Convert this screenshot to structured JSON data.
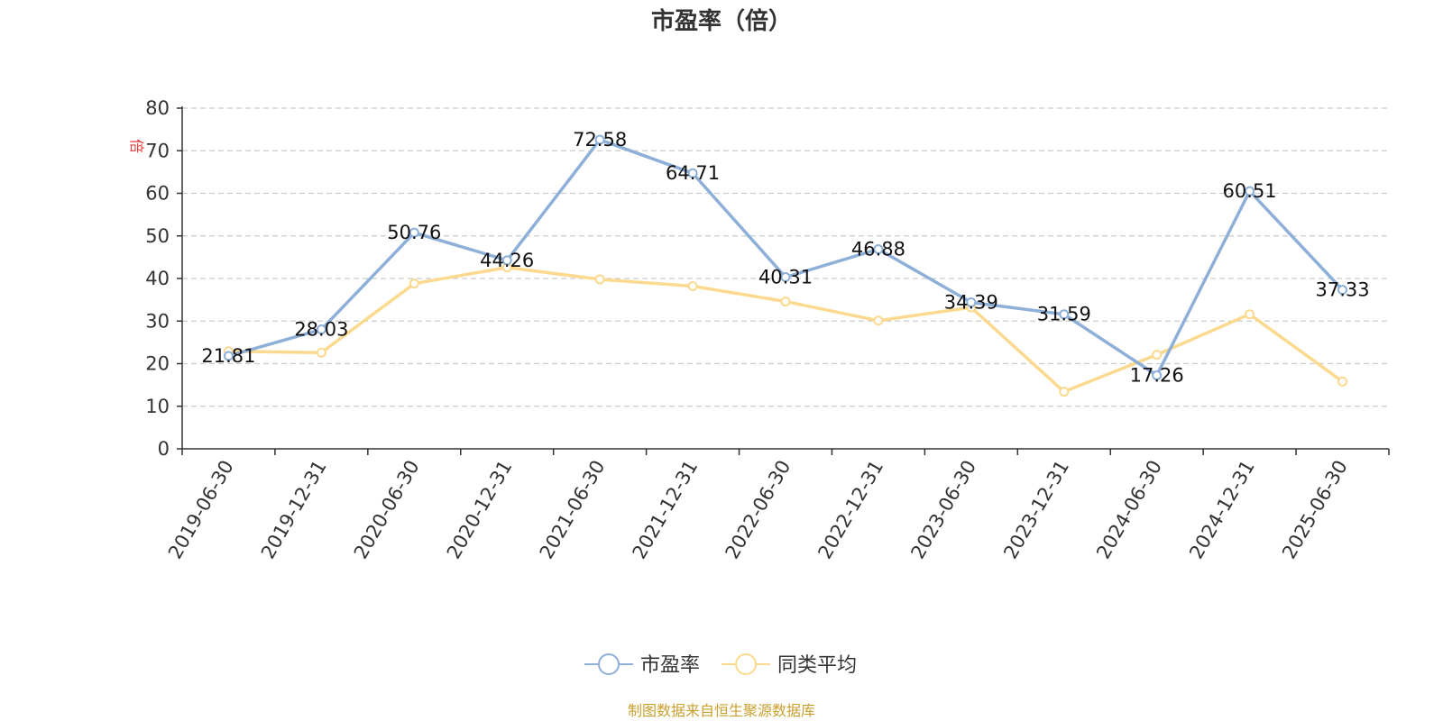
{
  "chart_data": {
    "type": "line",
    "title": "市盈率（倍）",
    "ylabel": "倍",
    "ylim": [
      0,
      80
    ],
    "yticks": [
      0,
      10,
      20,
      30,
      40,
      50,
      60,
      70,
      80
    ],
    "grid": true,
    "legend_position": "bottom",
    "categories": [
      "2019-06-30",
      "2019-12-31",
      "2020-06-30",
      "2020-12-31",
      "2021-06-30",
      "2021-12-31",
      "2022-06-30",
      "2022-12-31",
      "2023-06-30",
      "2023-12-31",
      "2024-06-30",
      "2024-12-31",
      "2025-06-30"
    ],
    "series": [
      {
        "name": "市盈率",
        "color": "#8eafd8",
        "show_labels": true,
        "values": [
          21.81,
          28.03,
          50.76,
          44.26,
          72.58,
          64.71,
          40.31,
          46.88,
          34.39,
          31.59,
          17.26,
          60.51,
          37.33
        ]
      },
      {
        "name": "同类平均",
        "color": "#fbd98f",
        "show_labels": false,
        "values": [
          22.9,
          22.6,
          38.8,
          42.6,
          39.8,
          38.2,
          34.6,
          30.1,
          33.2,
          13.4,
          22.1,
          31.6,
          15.8
        ]
      }
    ]
  },
  "colors": {
    "unit_label": "#e83a3a",
    "source": "#c9a02f"
  },
  "source_note": "制图数据来自恒生聚源数据库"
}
